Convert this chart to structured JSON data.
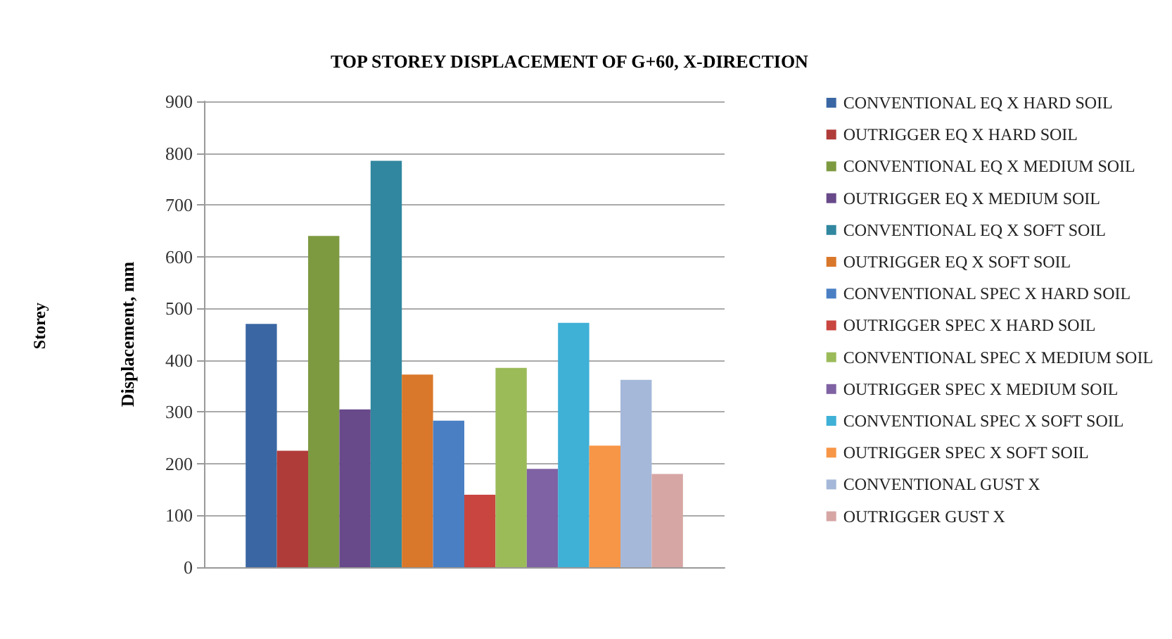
{
  "chart_data": {
    "type": "bar",
    "title": "TOP STOREY DISPLACEMENT OF G+60, X-DIRECTION",
    "ylabel": "Displacement, mm",
    "annotations": [
      "Storey"
    ],
    "categories": [
      null
    ],
    "series": [
      {
        "name": "CONVENTIONAL EQ X HARD SOIL",
        "color": "#3a67a3",
        "values": [
          470
        ]
      },
      {
        "name": "OUTRIGGER EQ X HARD SOIL",
        "color": "#b03c3a",
        "values": [
          225
        ]
      },
      {
        "name": "CONVENTIONAL EQ X MEDIUM SOIL",
        "color": "#7d9a41",
        "values": [
          640
        ]
      },
      {
        "name": "OUTRIGGER EQ X MEDIUM SOIL",
        "color": "#68498a",
        "values": [
          305
        ]
      },
      {
        "name": "CONVENTIONAL EQ X SOFT SOIL",
        "color": "#31879f",
        "values": [
          785
        ]
      },
      {
        "name": "OUTRIGGER EQ X SOFT SOIL",
        "color": "#d9772a",
        "values": [
          372
        ]
      },
      {
        "name": "CONVENTIONAL SPEC X HARD SOIL",
        "color": "#4a7fc4",
        "values": [
          283
        ]
      },
      {
        "name": "OUTRIGGER SPEC X HARD SOIL",
        "color": "#c9453f",
        "values": [
          140
        ]
      },
      {
        "name": "CONVENTIONAL SPEC X MEDIUM SOIL",
        "color": "#9bbb59",
        "values": [
          385
        ]
      },
      {
        "name": "OUTRIGGER SPEC X MEDIUM SOIL",
        "color": "#7f62a3",
        "values": [
          190
        ]
      },
      {
        "name": "CONVENTIONAL SPEC X SOFT SOIL",
        "color": "#3fb0d6",
        "values": [
          472
        ]
      },
      {
        "name": "OUTRIGGER SPEC X SOFT SOIL",
        "color": "#f79646",
        "values": [
          235
        ]
      },
      {
        "name": "CONVENTIONAL GUST X",
        "color": "#a5b8d9",
        "values": [
          362
        ]
      },
      {
        "name": "OUTRIGGER GUST X",
        "color": "#d6a6a5",
        "values": [
          180
        ]
      }
    ],
    "ylim": [
      0,
      900
    ],
    "yticks": [
      0,
      100,
      200,
      300,
      400,
      500,
      600,
      700,
      800,
      900
    ],
    "grid": "y",
    "legend": "right"
  }
}
